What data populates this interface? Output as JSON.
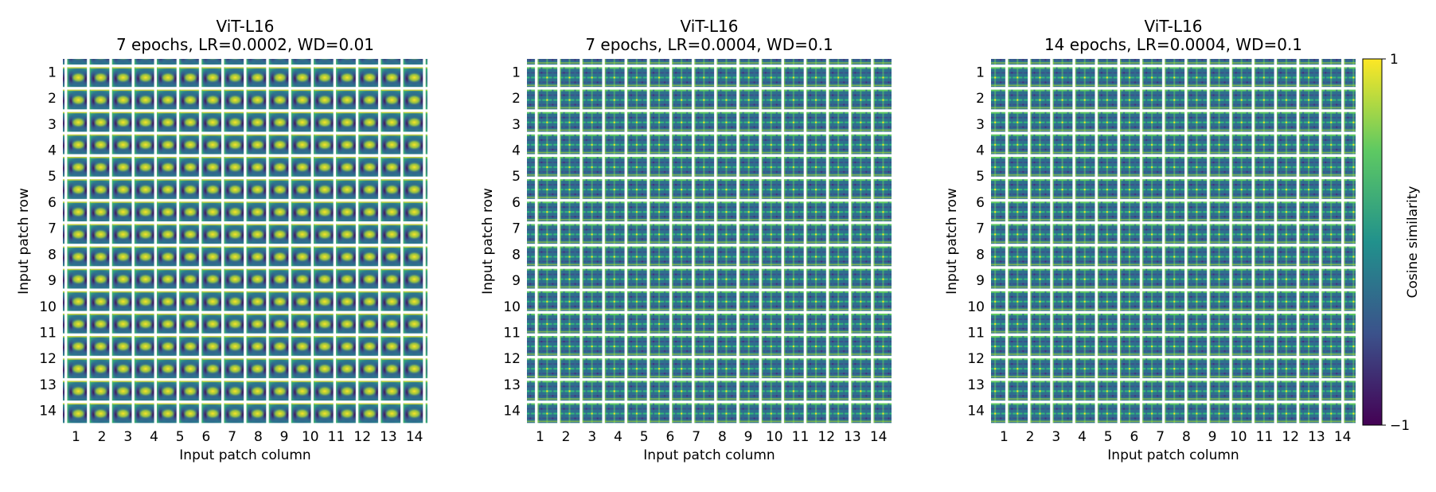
{
  "chart_data": [
    {
      "type": "heatmap",
      "title": "ViT-L16",
      "subtitle": "7 epochs, LR=0.0002, WD=0.01",
      "xlabel": "Input patch column",
      "ylabel": "Input patch row",
      "rows": [
        "1",
        "2",
        "3",
        "4",
        "5",
        "6",
        "7",
        "8",
        "9",
        "10",
        "11",
        "12",
        "13",
        "14"
      ],
      "cols": [
        "1",
        "2",
        "3",
        "4",
        "5",
        "6",
        "7",
        "8",
        "9",
        "10",
        "11",
        "12",
        "13",
        "14"
      ],
      "pattern": "smooth-blob",
      "value_range": [
        -1,
        1
      ]
    },
    {
      "type": "heatmap",
      "title": "ViT-L16",
      "subtitle": "7 epochs, LR=0.0004, WD=0.1",
      "xlabel": "Input patch column",
      "ylabel": "Input patch row",
      "rows": [
        "1",
        "2",
        "3",
        "4",
        "5",
        "6",
        "7",
        "8",
        "9",
        "10",
        "11",
        "12",
        "13",
        "14"
      ],
      "cols": [
        "1",
        "2",
        "3",
        "4",
        "5",
        "6",
        "7",
        "8",
        "9",
        "10",
        "11",
        "12",
        "13",
        "14"
      ],
      "pattern": "fine-grid",
      "value_range": [
        -1,
        1
      ]
    },
    {
      "type": "heatmap",
      "title": "ViT-L16",
      "subtitle": "14 epochs, LR=0.0004, WD=0.1",
      "xlabel": "Input patch column",
      "ylabel": "Input patch row",
      "rows": [
        "1",
        "2",
        "3",
        "4",
        "5",
        "6",
        "7",
        "8",
        "9",
        "10",
        "11",
        "12",
        "13",
        "14"
      ],
      "cols": [
        "1",
        "2",
        "3",
        "4",
        "5",
        "6",
        "7",
        "8",
        "9",
        "10",
        "11",
        "12",
        "13",
        "14"
      ],
      "pattern": "fine-grid",
      "value_range": [
        -1,
        1
      ]
    }
  ],
  "colorbar": {
    "label": "Cosine similarity",
    "max_label": "1",
    "min_label": "−1",
    "colormap": "viridis",
    "colors": [
      "#440154",
      "#3b528b",
      "#21918c",
      "#5ec962",
      "#fde725"
    ]
  }
}
